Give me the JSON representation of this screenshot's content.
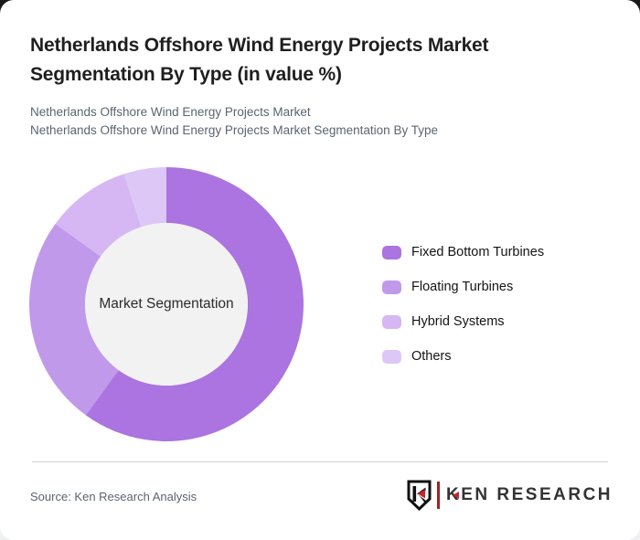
{
  "page": {
    "title": "Netherlands Offshore Wind Energy Projects Market Segmentation By Type (in value %)"
  },
  "subtitles": {
    "line1": "Netherlands Offshore Wind Energy Projects Market",
    "line2": "Netherlands Offshore Wind Energy Projects Market Segmentation By Type"
  },
  "chart_data": {
    "type": "pie",
    "subtype": "donut",
    "title": "Netherlands Offshore Wind Energy Projects Market Segmentation By Type (in value %)",
    "labels": [
      "Fixed Bottom Turbines",
      "Floating Turbines",
      "Hybrid Systems",
      "Others"
    ],
    "values": [
      60,
      25,
      10,
      5
    ],
    "unit": "value %",
    "colors": [
      "#ab74e0",
      "#c099eb",
      "#d6b7f3",
      "#ddc7f6"
    ],
    "center_label": "Market Segmentation",
    "center_fill": "#f2f2f2",
    "start_angle_deg": 0,
    "direction": "clockwise",
    "legend_position": "right"
  },
  "footer": {
    "source": "Source: Ken Research Analysis",
    "logo_text": "KEN RESEARCH",
    "logo_accent_color": "#c9252b"
  }
}
